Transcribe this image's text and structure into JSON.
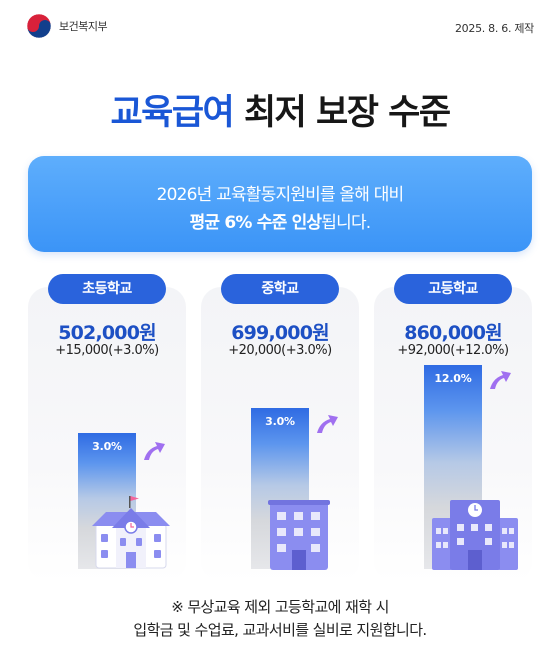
{
  "header": {
    "org_name": "보건복지부",
    "date": "2025. 8. 6. 제작"
  },
  "title": {
    "highlight": "교육급여",
    "rest": "최저 보장 수준"
  },
  "banner": {
    "line1": "2026년 교육활동지원비를 올해 대비",
    "line2_bold": "평균 6% 수준 인상",
    "line2_rest": "됩니다."
  },
  "colors": {
    "accent": "#1a57d6",
    "pill": "#2a63dc",
    "banner": "#4aa0fa",
    "arrow": "#a070f0",
    "building": "#8b8df0"
  },
  "schools": [
    {
      "label": "초등학교",
      "amount": "502,000원",
      "change": "+15,000(+3.0%)",
      "bar_label": "3.0%",
      "building_icon": "elementary-school-building-icon"
    },
    {
      "label": "중학교",
      "amount": "699,000원",
      "change": "+20,000(+3.0%)",
      "bar_label": "3.0%",
      "building_icon": "middle-school-building-icon"
    },
    {
      "label": "고등학교",
      "amount": "860,000원",
      "change": "+92,000(+12.0%)",
      "bar_label": "12.0%",
      "building_icon": "high-school-building-icon"
    }
  ],
  "footnote": {
    "line1": "※ 무상교육 제외 고등학교에 재학 시",
    "line2": "입학금 및 수업료, 교과서비를 실비로 지원합니다."
  }
}
